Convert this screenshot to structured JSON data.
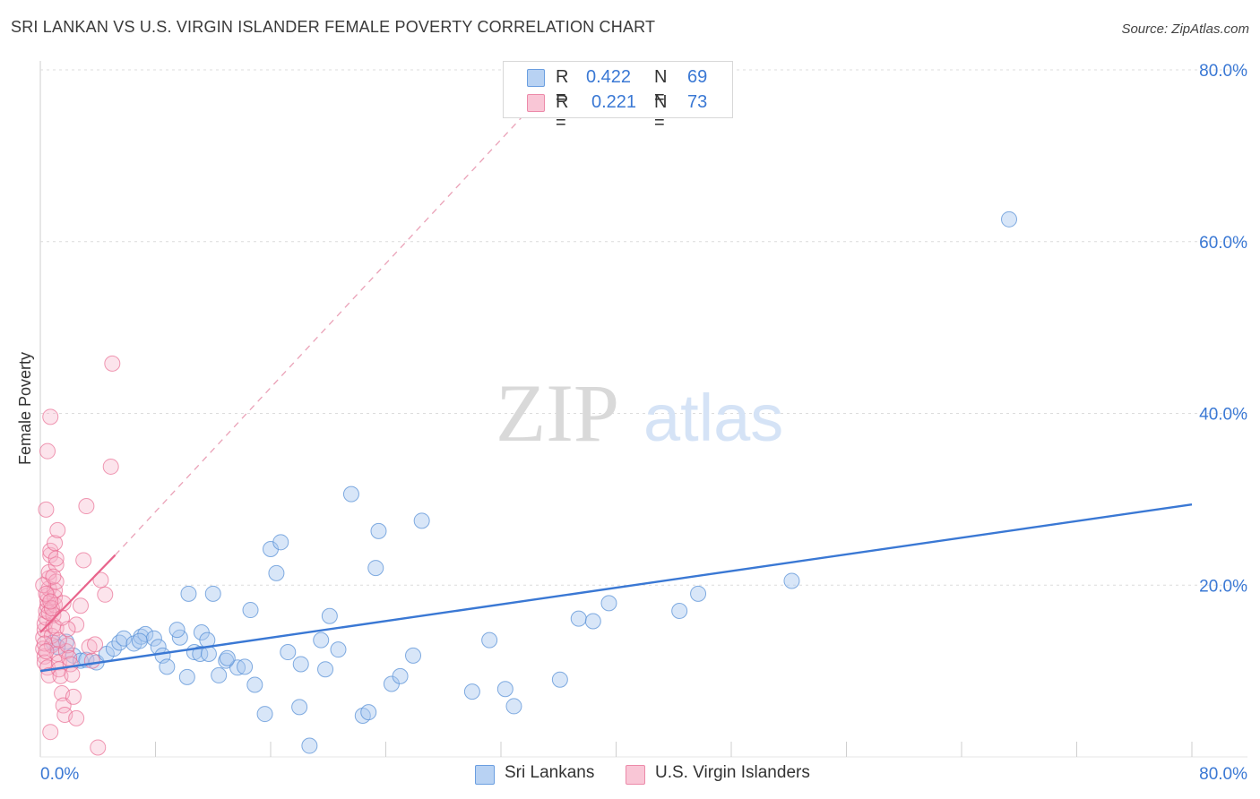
{
  "title": "SRI LANKAN VS U.S. VIRGIN ISLANDER FEMALE POVERTY CORRELATION CHART",
  "source": "Source: ZipAtlas.com",
  "watermark": {
    "zip": "ZIP",
    "atlas": "atlas"
  },
  "colors": {
    "blue": "#3a78d4",
    "blue_fill": "#a9c8f0",
    "pink": "#e8648c",
    "pink_fill": "#f6b3c8",
    "grid": "#dcdcdc",
    "axis_text": "#3a78d4"
  },
  "legend": {
    "series1": {
      "r_label": "R =",
      "r_value": "0.422",
      "n_label": "N =",
      "n_value": "69"
    },
    "series2": {
      "r_label": "R =",
      "r_value": "0.221",
      "n_label": "N =",
      "n_value": "73"
    }
  },
  "bottom_legend": {
    "series1": "Sri Lankans",
    "series2": "U.S. Virgin Islanders"
  },
  "chart_data": {
    "type": "scatter",
    "title": "SRI LANKAN VS U.S. VIRGIN ISLANDER FEMALE POVERTY CORRELATION CHART",
    "xlabel": "",
    "ylabel": "Female Poverty",
    "xlim": [
      0,
      80
    ],
    "ylim": [
      0,
      80
    ],
    "x_tick_labels": [
      "0.0%",
      "80.0%"
    ],
    "y_tick_labels": [
      "20.0%",
      "40.0%",
      "60.0%",
      "80.0%"
    ],
    "y_ticks": [
      20,
      40,
      60,
      80
    ],
    "x_minor_ticks": [
      8,
      16,
      24,
      32,
      40,
      48,
      56,
      64,
      72,
      80
    ],
    "series": [
      {
        "name": "Sri Lankans",
        "color": "#3a78d4",
        "trend": {
          "x0": 0,
          "y0": 10.0,
          "x1": 80,
          "y1": 29.4
        },
        "points": [
          [
            0.9,
            13.3
          ],
          [
            1.8,
            13.4
          ],
          [
            2.3,
            11.8
          ],
          [
            2.8,
            11.2
          ],
          [
            3.2,
            11.3
          ],
          [
            3.9,
            11.0
          ],
          [
            4.6,
            12.0
          ],
          [
            5.1,
            12.6
          ],
          [
            5.5,
            13.3
          ],
          [
            5.8,
            13.8
          ],
          [
            6.5,
            13.2
          ],
          [
            7.0,
            14.0
          ],
          [
            7.3,
            14.3
          ],
          [
            7.9,
            13.8
          ],
          [
            8.2,
            12.8
          ],
          [
            8.5,
            11.8
          ],
          [
            8.8,
            10.5
          ],
          [
            9.7,
            13.9
          ],
          [
            10.2,
            9.3
          ],
          [
            10.3,
            19.0
          ],
          [
            10.7,
            12.2
          ],
          [
            11.1,
            12.0
          ],
          [
            11.2,
            14.5
          ],
          [
            11.6,
            13.6
          ],
          [
            11.7,
            12.0
          ],
          [
            12.0,
            19.0
          ],
          [
            12.4,
            9.5
          ],
          [
            12.9,
            11.2
          ],
          [
            13.7,
            10.4
          ],
          [
            14.2,
            10.5
          ],
          [
            14.6,
            17.1
          ],
          [
            14.9,
            8.4
          ],
          [
            15.6,
            5.0
          ],
          [
            16.0,
            24.2
          ],
          [
            16.4,
            21.4
          ],
          [
            16.7,
            25.0
          ],
          [
            17.2,
            12.2
          ],
          [
            18.1,
            10.8
          ],
          [
            18.7,
            1.3
          ],
          [
            19.5,
            13.6
          ],
          [
            19.8,
            10.2
          ],
          [
            20.1,
            16.4
          ],
          [
            20.7,
            12.5
          ],
          [
            21.6,
            30.6
          ],
          [
            22.4,
            4.8
          ],
          [
            22.8,
            5.2
          ],
          [
            23.3,
            22.0
          ],
          [
            23.5,
            26.3
          ],
          [
            24.4,
            8.5
          ],
          [
            25.0,
            9.4
          ],
          [
            25.9,
            11.8
          ],
          [
            26.5,
            27.5
          ],
          [
            30.0,
            7.6
          ],
          [
            31.2,
            13.6
          ],
          [
            32.3,
            7.9
          ],
          [
            32.9,
            5.9
          ],
          [
            36.1,
            9.0
          ],
          [
            37.4,
            16.1
          ],
          [
            38.4,
            15.8
          ],
          [
            39.5,
            17.9
          ],
          [
            44.4,
            17.0
          ],
          [
            45.7,
            19.0
          ],
          [
            52.2,
            20.5
          ],
          [
            67.3,
            62.6
          ],
          [
            9.5,
            14.8
          ],
          [
            13.0,
            11.5
          ],
          [
            18.0,
            5.8
          ],
          [
            6.9,
            13.5
          ],
          [
            1.2,
            12.8
          ]
        ]
      },
      {
        "name": "U.S. Virgin Islanders",
        "color": "#e8648c",
        "trend": {
          "x0": 0,
          "y0": 14.5,
          "x1": 5.2,
          "y1": 23.5,
          "dash_x1": 36.5,
          "dash_y1": 80
        },
        "points": [
          [
            0.2,
            13.9
          ],
          [
            0.3,
            14.8
          ],
          [
            0.3,
            15.5
          ],
          [
            0.4,
            16.2
          ],
          [
            0.4,
            17.0
          ],
          [
            0.5,
            17.6
          ],
          [
            0.5,
            18.2
          ],
          [
            0.5,
            18.8
          ],
          [
            0.6,
            19.6
          ],
          [
            0.6,
            20.8
          ],
          [
            0.6,
            21.5
          ],
          [
            0.7,
            23.5
          ],
          [
            0.7,
            24.0
          ],
          [
            0.4,
            28.8
          ],
          [
            0.5,
            35.6
          ],
          [
            0.7,
            39.6
          ],
          [
            0.2,
            12.6
          ],
          [
            0.3,
            11.7
          ],
          [
            0.3,
            11.0
          ],
          [
            0.5,
            10.4
          ],
          [
            0.6,
            9.5
          ],
          [
            0.7,
            2.9
          ],
          [
            0.8,
            13.0
          ],
          [
            0.8,
            14.1
          ],
          [
            0.9,
            15.3
          ],
          [
            0.9,
            16.5
          ],
          [
            1.0,
            17.7
          ],
          [
            1.0,
            18.6
          ],
          [
            1.0,
            19.4
          ],
          [
            1.1,
            20.4
          ],
          [
            1.1,
            22.4
          ],
          [
            1.1,
            23.1
          ],
          [
            1.0,
            24.9
          ],
          [
            1.2,
            26.4
          ],
          [
            1.2,
            12.0
          ],
          [
            1.3,
            11.0
          ],
          [
            1.3,
            10.2
          ],
          [
            1.4,
            9.4
          ],
          [
            1.5,
            7.4
          ],
          [
            1.6,
            6.0
          ],
          [
            1.7,
            4.9
          ],
          [
            1.8,
            12.3
          ],
          [
            1.9,
            13.0
          ],
          [
            2.0,
            11.5
          ],
          [
            2.1,
            10.8
          ],
          [
            2.2,
            9.6
          ],
          [
            2.3,
            7.0
          ],
          [
            2.5,
            4.5
          ],
          [
            2.5,
            15.4
          ],
          [
            2.8,
            17.6
          ],
          [
            3.0,
            22.9
          ],
          [
            3.2,
            29.2
          ],
          [
            3.4,
            12.8
          ],
          [
            3.6,
            11.2
          ],
          [
            3.8,
            13.1
          ],
          [
            4.0,
            1.1
          ],
          [
            4.2,
            20.6
          ],
          [
            4.5,
            18.9
          ],
          [
            4.9,
            33.8
          ],
          [
            5.0,
            45.8
          ],
          [
            0.3,
            13.2
          ],
          [
            0.4,
            12.3
          ],
          [
            0.6,
            16.8
          ],
          [
            0.8,
            17.3
          ],
          [
            1.1,
            15.0
          ],
          [
            1.3,
            13.6
          ],
          [
            1.6,
            17.9
          ],
          [
            1.9,
            14.9
          ],
          [
            0.2,
            20.0
          ],
          [
            0.4,
            19.0
          ],
          [
            0.7,
            18.1
          ],
          [
            0.9,
            21.0
          ],
          [
            1.5,
            16.2
          ]
        ]
      }
    ]
  }
}
